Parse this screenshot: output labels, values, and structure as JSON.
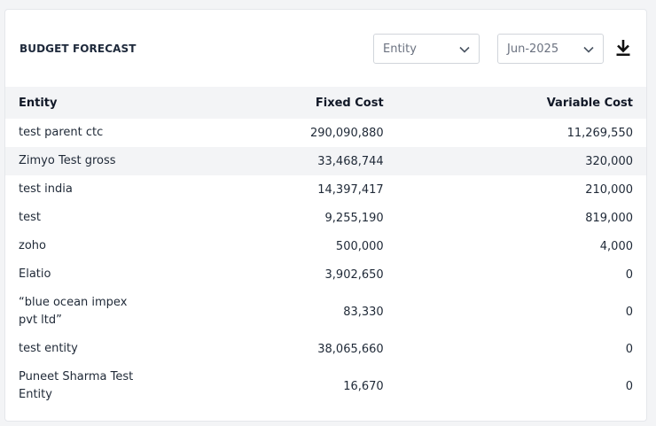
{
  "header": {
    "title": "BUDGET FORECAST",
    "entity_select": "Entity",
    "month_select": "Jun-2025",
    "download_icon": "download-icon"
  },
  "table": {
    "columns": [
      "Entity",
      "Fixed Cost",
      "Variable Cost"
    ],
    "rows": [
      {
        "entity": "test parent ctc",
        "fixed": "290,090,880",
        "variable": "11,269,550"
      },
      {
        "entity": "Zimyo Test gross",
        "fixed": "33,468,744",
        "variable": "320,000"
      },
      {
        "entity": "test india",
        "fixed": "14,397,417",
        "variable": "210,000"
      },
      {
        "entity": "test",
        "fixed": "9,255,190",
        "variable": "819,000"
      },
      {
        "entity": "zoho",
        "fixed": "500,000",
        "variable": "4,000"
      },
      {
        "entity": "Elatio",
        "fixed": "3,902,650",
        "variable": "0"
      },
      {
        "entity": "“blue ocean impex pvt ltd”",
        "fixed": "83,330",
        "variable": "0"
      },
      {
        "entity": "test entity",
        "fixed": "38,065,660",
        "variable": "0"
      },
      {
        "entity": "Puneet Sharma Test Entity",
        "fixed": "16,670",
        "variable": "0"
      }
    ]
  }
}
